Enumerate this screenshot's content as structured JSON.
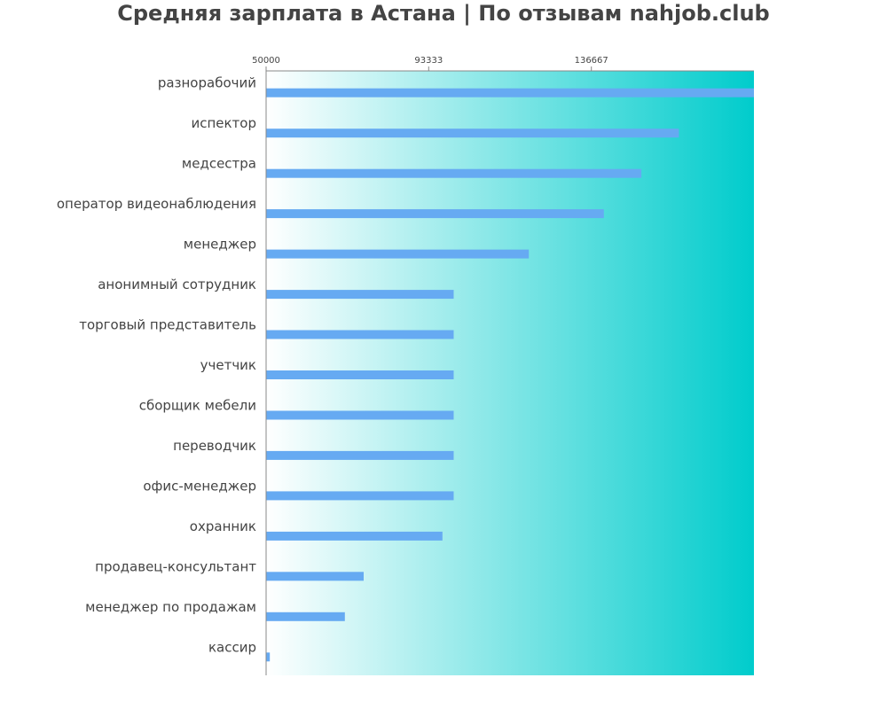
{
  "colors": {
    "title": "#444444",
    "label": "#444444",
    "bar": "#66aaf2",
    "gradient_start": "#ffffff",
    "gradient_end": "#00cccc",
    "axis": "#888888"
  },
  "chart_data": {
    "type": "bar",
    "orientation": "horizontal",
    "title": "Средняя зарплата в Астана | По отзывам nahjob.club",
    "xlabel": "",
    "ylabel": "",
    "xlim": [
      50000,
      180000
    ],
    "xticks": [
      50000,
      93333,
      136667
    ],
    "xtick_labels": [
      "50000",
      "93333",
      "136667"
    ],
    "grid": false,
    "legend": "none",
    "categories": [
      "разнорабочий",
      "испектор",
      "медсестра",
      "оператор видеонаблюдения",
      "менеджер",
      "анонимный сотрудник",
      "торговый представитель",
      "учетчик",
      "сборщик мебели",
      "переводчик",
      "офис-менеджер",
      "охранник",
      "продавец-консультант",
      "менеджер по продажам",
      "кассир"
    ],
    "values": [
      180000,
      160000,
      150000,
      140000,
      120000,
      100000,
      100000,
      100000,
      100000,
      100000,
      100000,
      97000,
      76000,
      71000,
      51000
    ]
  }
}
